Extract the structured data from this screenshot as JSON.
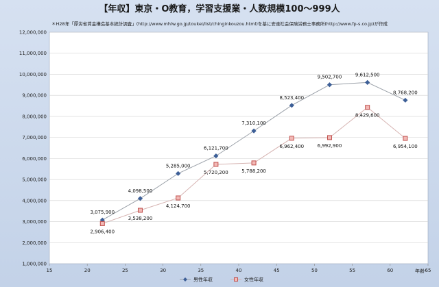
{
  "chart_data": {
    "type": "line",
    "title": "【年収】東京・O教育，学習支援業・人数規模100～999人",
    "subtitle": "＊H28年「厚労省賃金構造基本統計調査」(http://www.mhlw.go.jp/toukei/list/chinginkouzou.html)を基に安達社会保険労務士事務所(http://www.fp-s.co.jp)が作成",
    "xlabel": "年齢",
    "ylabel": "",
    "xlim": [
      15,
      65
    ],
    "ylim": [
      1000000,
      12000000
    ],
    "x_ticks": [
      15,
      20,
      25,
      30,
      35,
      40,
      45,
      50,
      55,
      60,
      65
    ],
    "y_ticks": [
      1000000,
      2000000,
      3000000,
      4000000,
      5000000,
      6000000,
      7000000,
      8000000,
      9000000,
      10000000,
      11000000,
      12000000
    ],
    "grid": "horizontal",
    "legend_position": "bottom",
    "series": [
      {
        "name": "男性年収",
        "color": "#3d5f97",
        "marker": "diamond",
        "x": [
          22,
          27,
          32,
          37,
          42,
          47,
          52,
          57,
          62
        ],
        "values": [
          3075900,
          4098500,
          5285000,
          6121700,
          7310100,
          8523400,
          9502700,
          9612500,
          8768200
        ],
        "labels": [
          "3,075,900",
          "4,098,500",
          "5,285,000",
          "6,121,700",
          "7,310,100",
          "8,523,400",
          "9,502,700",
          "9,612,500",
          "8,768,200"
        ]
      },
      {
        "name": "女性年収",
        "color": "#c0504d",
        "marker": "square",
        "x": [
          22,
          27,
          32,
          37,
          42,
          47,
          52,
          57,
          62
        ],
        "values": [
          2906400,
          3538200,
          4124700,
          5720200,
          5788200,
          6962400,
          6992900,
          8429600,
          6954100
        ],
        "labels": [
          "2,906,400",
          "3,538,200",
          "4,124,700",
          "5,720,200",
          "5,788,200",
          "6,962,400",
          "6,992,900",
          "8,429,600",
          "6,954,100"
        ]
      }
    ]
  }
}
